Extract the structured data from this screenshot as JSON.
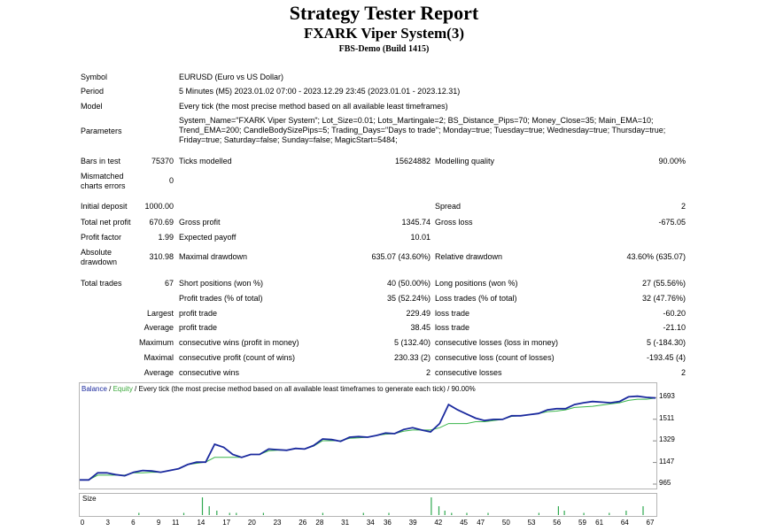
{
  "header": {
    "title": "Strategy Tester Report",
    "subtitle": "FXARK Viper System(3)",
    "server": "FBS-Demo (Build 1415)"
  },
  "info": {
    "symbol_label": "Symbol",
    "symbol_value": "EURUSD (Euro vs US Dollar)",
    "period_label": "Period",
    "period_value": "5 Minutes (M5) 2023.01.02 07:00 - 2023.12.29 23:45 (2023.01.01 - 2023.12.31)",
    "model_label": "Model",
    "model_value": "Every tick (the most precise method based on all available least timeframes)",
    "parameters_label": "Parameters",
    "parameters_value": "System_Name=\"FXARK Viper System\"; Lot_Size=0.01; Lots_Martingale=2; BS_Distance_Pips=70; Money_Close=35; Main_EMA=10; Trend_EMA=200; CandleBodySizePips=5; Trading_Days=\"Days to trade\"; Monday=true; Tuesday=true; Wednesday=true; Thursday=true; Friday=true; Saturday=false; Sunday=false; MagicStart=5484;"
  },
  "stats": {
    "bars_label": "Bars in test",
    "bars_value": "75370",
    "ticks_label": "Ticks modelled",
    "ticks_value": "15624882",
    "quality_label": "Modelling quality",
    "quality_value": "90.00%",
    "mismatch_label_1": "Mismatched",
    "mismatch_label_2": "charts errors",
    "mismatch_value": "0",
    "deposit_label": "Initial deposit",
    "deposit_value": "1000.00",
    "spread_label": "Spread",
    "spread_value": "2",
    "netprofit_label": "Total net profit",
    "netprofit_value": "670.69",
    "grossprofit_label": "Gross profit",
    "grossprofit_value": "1345.74",
    "grossloss_label": "Gross loss",
    "grossloss_value": "-675.05",
    "pf_label": "Profit factor",
    "pf_value": "1.99",
    "payoff_label": "Expected payoff",
    "payoff_value": "10.01",
    "absdd_label_1": "Absolute",
    "absdd_label_2": "drawdown",
    "absdd_value": "310.98",
    "maxdd_label": "Maximal drawdown",
    "maxdd_value": "635.07 (43.60%)",
    "reldd_label": "Relative drawdown",
    "reldd_value": "43.60% (635.07)",
    "trades_label": "Total trades",
    "trades_value": "67",
    "short_label": "Short positions (won %)",
    "short_value": "40 (50.00%)",
    "long_label": "Long positions (won %)",
    "long_value": "27 (55.56%)",
    "profit_trades_label": "Profit trades (% of total)",
    "profit_trades_value": "35 (52.24%)",
    "loss_trades_label": "Loss trades (% of total)",
    "loss_trades_value": "32 (47.76%)",
    "largest_label": "Largest",
    "largest_profit_label": "profit trade",
    "largest_profit_value": "229.49",
    "largest_loss_label": "loss trade",
    "largest_loss_value": "-60.20",
    "average_label": "Average",
    "average_profit_label": "profit trade",
    "average_profit_value": "38.45",
    "average_loss_label": "loss trade",
    "average_loss_value": "-21.10",
    "maximum_label": "Maximum",
    "max_cw_label": "consecutive wins (profit in money)",
    "max_cw_value": "5 (132.40)",
    "max_cl_label": "consecutive losses (loss in money)",
    "max_cl_value": "5 (-184.30)",
    "maximal_label": "Maximal",
    "mxl_cp_label": "consecutive profit (count of wins)",
    "mxl_cp_value": "230.33 (2)",
    "mxl_cl_label": "consecutive loss (count of losses)",
    "mxl_cl_value": "-193.45 (4)",
    "avg2_label": "Average",
    "avg_cw_label": "consecutive wins",
    "avg_cw_value": "2",
    "avg_cl_label": "consecutive losses",
    "avg_cl_value": "2"
  },
  "chart_legend": {
    "balance": "Balance",
    "sep": " / ",
    "equity": "Equity",
    "rest": " / Every tick (the most precise method based on all available least timeframes to generate each tick) / 90.00%"
  },
  "size_label": "Size",
  "chart_data": [
    {
      "type": "line",
      "ylim": [
        965,
        1740
      ],
      "y_ticks": [
        "1693",
        "1511",
        "1329",
        "1147",
        "965"
      ],
      "colors": {
        "balance": "#1b2a9e",
        "equity": "#39b54a"
      },
      "series": [
        {
          "name": "Balance",
          "values": [
            1000,
            1000,
            1060,
            1060,
            1045,
            1035,
            1065,
            1080,
            1075,
            1065,
            1080,
            1095,
            1130,
            1150,
            1150,
            1300,
            1275,
            1215,
            1190,
            1215,
            1215,
            1260,
            1255,
            1250,
            1265,
            1260,
            1290,
            1345,
            1340,
            1325,
            1360,
            1365,
            1360,
            1375,
            1395,
            1390,
            1425,
            1440,
            1420,
            1405,
            1475,
            1635,
            1590,
            1555,
            1520,
            1500,
            1510,
            1510,
            1540,
            1540,
            1550,
            1560,
            1590,
            1600,
            1600,
            1635,
            1650,
            1660,
            1655,
            1650,
            1660,
            1700,
            1705,
            1695,
            1690
          ]
        },
        {
          "name": "Equity",
          "values": [
            1000,
            1000,
            1040,
            1040,
            1040,
            1040,
            1060,
            1060,
            1065,
            1065,
            1080,
            1095,
            1130,
            1140,
            1150,
            1190,
            1190,
            1190,
            1190,
            1215,
            1215,
            1245,
            1250,
            1250,
            1265,
            1260,
            1285,
            1330,
            1330,
            1330,
            1350,
            1355,
            1360,
            1375,
            1385,
            1390,
            1410,
            1420,
            1420,
            1420,
            1440,
            1475,
            1475,
            1475,
            1490,
            1490,
            1500,
            1510,
            1535,
            1540,
            1550,
            1560,
            1575,
            1580,
            1590,
            1610,
            1615,
            1620,
            1630,
            1640,
            1650,
            1670,
            1680,
            1680,
            1690
          ]
        }
      ]
    },
    {
      "type": "bar",
      "x_ticks": [
        "0",
        "3",
        "6",
        "9",
        "11",
        "14",
        "17",
        "20",
        "23",
        "26",
        "28",
        "31",
        "34",
        "36",
        "39",
        "42",
        "45",
        "47",
        "50",
        "53",
        "56",
        "59",
        "61",
        "64",
        "67"
      ],
      "values": [
        0,
        0,
        0,
        0,
        0,
        0,
        0,
        0,
        0,
        0,
        0,
        0,
        0,
        0,
        0,
        0,
        0,
        0,
        0,
        0,
        0,
        0,
        0,
        0,
        0,
        0,
        0,
        0,
        0,
        0,
        0,
        0,
        0,
        0,
        0,
        0,
        0,
        0,
        0,
        0,
        0,
        0,
        0,
        0,
        0,
        0,
        0,
        0,
        0,
        0,
        0,
        0,
        0,
        0,
        0,
        0,
        0,
        0,
        0,
        0,
        0,
        0,
        0,
        0,
        0,
        0,
        0
      ],
      "bars": [
        {
          "x": 6.5,
          "v": 1
        },
        {
          "x": 11.8,
          "v": 1
        },
        {
          "x": 14.0,
          "v": 8
        },
        {
          "x": 14.8,
          "v": 4
        },
        {
          "x": 15.7,
          "v": 2
        },
        {
          "x": 17.2,
          "v": 1
        },
        {
          "x": 18.0,
          "v": 1
        },
        {
          "x": 21.2,
          "v": 1
        },
        {
          "x": 28.2,
          "v": 1
        },
        {
          "x": 33.0,
          "v": 1
        },
        {
          "x": 36.0,
          "v": 1
        },
        {
          "x": 41.0,
          "v": 8
        },
        {
          "x": 41.9,
          "v": 4
        },
        {
          "x": 42.6,
          "v": 2
        },
        {
          "x": 43.4,
          "v": 1
        },
        {
          "x": 45.2,
          "v": 1
        },
        {
          "x": 47.7,
          "v": 1
        },
        {
          "x": 53.7,
          "v": 1
        },
        {
          "x": 56.0,
          "v": 4
        },
        {
          "x": 56.7,
          "v": 2
        },
        {
          "x": 59.0,
          "v": 1
        },
        {
          "x": 62.0,
          "v": 1
        },
        {
          "x": 64.0,
          "v": 2
        },
        {
          "x": 66.0,
          "v": 4
        }
      ]
    }
  ]
}
